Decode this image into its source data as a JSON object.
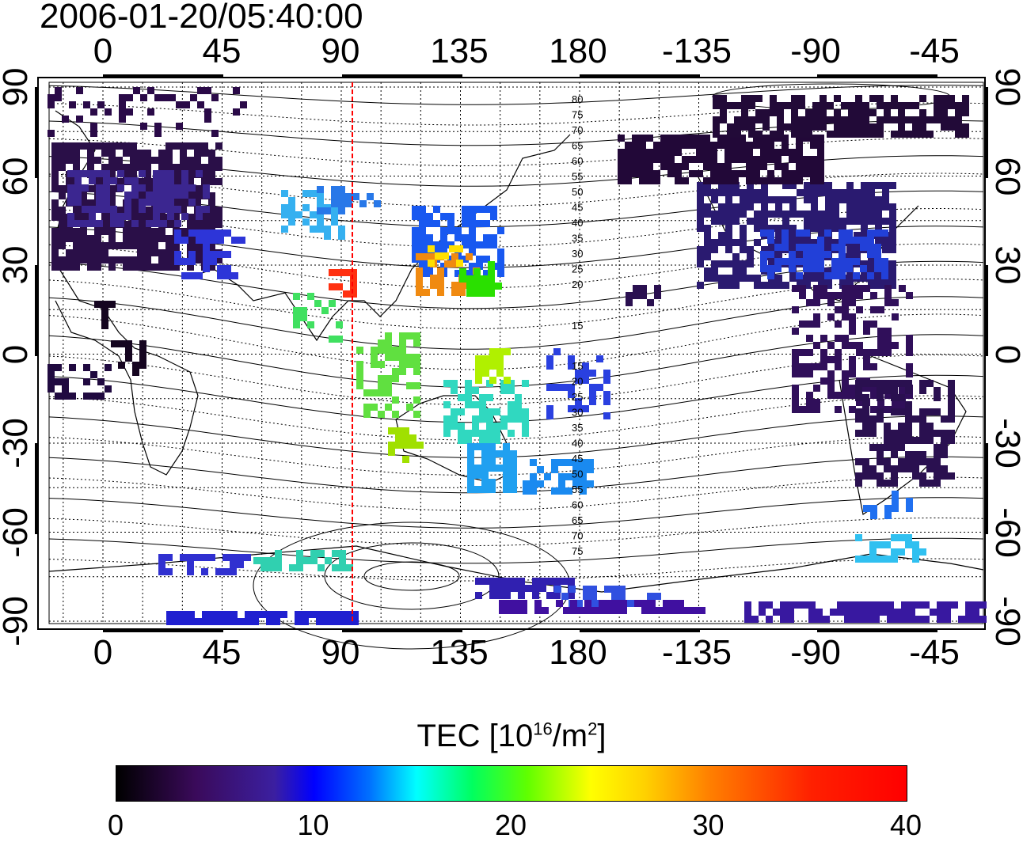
{
  "title": "2006-01-20/05:40:00",
  "top_axis_labels": [
    "0",
    "45",
    "90",
    "135",
    "180",
    "-135",
    "-90",
    "-45"
  ],
  "bottom_axis_labels": [
    "0",
    "45",
    "90",
    "135",
    "180",
    "-135",
    "-90",
    "-45"
  ],
  "left_axis_labels": [
    "90",
    "60",
    "30",
    "0",
    "-30",
    "-60",
    "-90"
  ],
  "right_axis_labels": [
    "90",
    "60",
    "30",
    "0",
    "-30",
    "-60",
    "-90"
  ],
  "contour_labels_north": [
    "80",
    "75",
    "70",
    "65",
    "60",
    "55",
    "50",
    "45",
    "40",
    "35",
    "30",
    "25",
    "20",
    "15"
  ],
  "contour_labels_south": [
    "15",
    "20",
    "25",
    "30",
    "35",
    "40",
    "45",
    "50",
    "55",
    "60",
    "65",
    "70",
    "75"
  ],
  "colorbar": {
    "title_main": "TEC  [10",
    "title_exp1": "16",
    "title_mid": "/m",
    "title_exp2": "2",
    "title_end": "]",
    "ticks": [
      "0",
      "10",
      "20",
      "30",
      "40"
    ],
    "min": 0,
    "max": 40
  },
  "map": {
    "central_meridian_line_lon": 95,
    "line_color": "#ff0000",
    "grid": true
  }
}
